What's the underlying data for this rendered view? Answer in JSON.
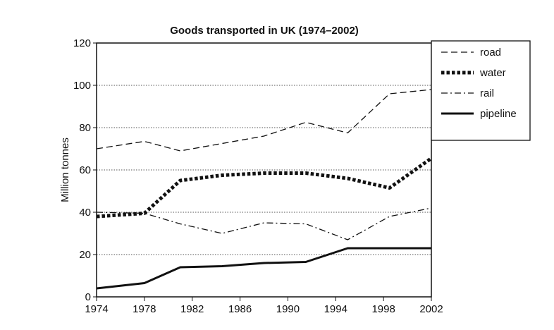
{
  "chart_data": {
    "type": "line",
    "title": "Goods transported in UK (1974–2002)",
    "xlabel": "",
    "ylabel": "Million tonnes",
    "x_ticks": [
      "1974",
      "1978",
      "1982",
      "1986",
      "1990",
      "1994",
      "1998",
      "2002"
    ],
    "y_ticks": [
      "0",
      "20",
      "40",
      "60",
      "80",
      "100",
      "120"
    ],
    "xlim": [
      1974,
      2002
    ],
    "ylim": [
      0,
      120
    ],
    "grid": "horizontal dotted",
    "legend_position": "right",
    "x": [
      1974,
      1978,
      1981,
      1984.5,
      1988,
      1991.5,
      1995,
      1998.5,
      2002
    ],
    "series": [
      {
        "name": "road",
        "style": "dashed",
        "values": [
          70,
          73.5,
          69,
          72.5,
          76,
          82.5,
          77.5,
          96,
          98
        ]
      },
      {
        "name": "water",
        "style": "thick-dotted",
        "values": [
          38,
          39.5,
          55,
          57.5,
          58.5,
          58.5,
          56,
          51.5,
          65.5
        ]
      },
      {
        "name": "rail",
        "style": "dash-dot",
        "values": [
          40,
          39.5,
          34.5,
          30,
          35,
          34.5,
          27,
          38,
          42
        ]
      },
      {
        "name": "pipeline",
        "style": "solid",
        "values": [
          4,
          6.5,
          14,
          14.5,
          16,
          16.5,
          23,
          23,
          23
        ]
      }
    ],
    "colors": {
      "line": "#111111",
      "grid": "#555555"
    }
  }
}
